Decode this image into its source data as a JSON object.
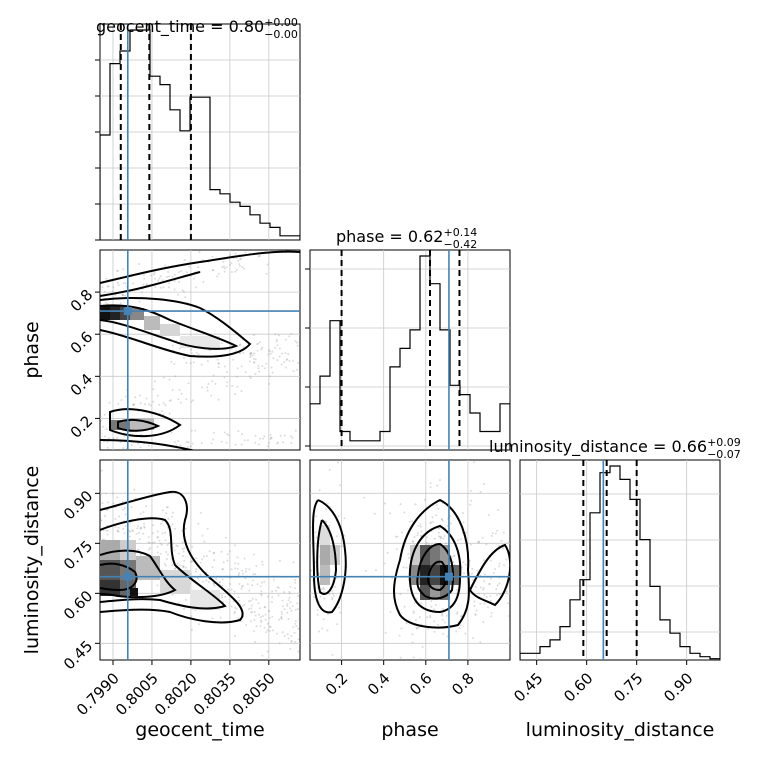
{
  "chart_data": {
    "type": "corner",
    "parameters": [
      "geocent_time",
      "phase",
      "luminosity_distance"
    ],
    "truths": {
      "geocent_time": 0.79957,
      "phase": 0.71,
      "luminosity_distance": 0.65
    },
    "titles": [
      {
        "param": "geocent_time",
        "prefix": "geocent_time = 0.80",
        "sup": "+0.00",
        "sub": "−0.00"
      },
      {
        "param": "phase",
        "prefix": "phase = 0.62",
        "sup": "+0.14",
        "sub": "−0.42"
      },
      {
        "param": "luminosity_distance",
        "prefix": "luminosity_distance = 0.66",
        "sup": "+0.09",
        "sub": "−0.07"
      }
    ],
    "ranges": {
      "geocent_time": [
        0.7985,
        0.8062
      ],
      "phase": [
        0.05,
        1.0
      ],
      "luminosity_distance": [
        0.4,
        1.0
      ]
    },
    "ticks": {
      "geocent_time": [
        0.799,
        0.8005,
        0.802,
        0.8035,
        0.805
      ],
      "phase": [
        0.2,
        0.4,
        0.6,
        0.8
      ],
      "luminosity_distance": [
        0.45,
        0.6,
        0.75,
        0.9
      ]
    },
    "tick_labels": {
      "geocent_time": [
        "0.7990",
        "0.8005",
        "0.8020",
        "0.8035",
        "0.8050"
      ],
      "phase": [
        "0.2",
        "0.4",
        "0.6",
        "0.8"
      ],
      "luminosity_distance": [
        "0.45",
        "0.60",
        "0.75",
        "0.90"
      ]
    },
    "quantiles": {
      "geocent_time": [
        0.7993,
        0.8004,
        0.802
      ],
      "phase": [
        0.2,
        0.62,
        0.76
      ],
      "luminosity_distance": [
        0.59,
        0.66,
        0.75
      ]
    },
    "histograms": {
      "geocent_time": {
        "range": [
          0.7985,
          0.8062
        ],
        "counts": [
          25,
          42,
          45,
          50,
          50,
          39,
          37,
          31,
          26,
          34,
          34,
          12,
          11,
          9,
          8,
          6,
          4,
          3,
          1,
          1
        ]
      },
      "phase": {
        "range": [
          0.05,
          1.0
        ],
        "counts": [
          5,
          8,
          14,
          2,
          1,
          1,
          1,
          2,
          9,
          11,
          13,
          21,
          18,
          13,
          7,
          6,
          4,
          2,
          2,
          5
        ]
      },
      "luminosity_distance": {
        "range": [
          0.4,
          1.0
        ],
        "counts": [
          1,
          1,
          2,
          3,
          5,
          9,
          12,
          22,
          28,
          29,
          27,
          24,
          18,
          11,
          6,
          4,
          2,
          1,
          0.5,
          0.2
        ]
      }
    },
    "grid": true,
    "truth_color": "#4682b4"
  }
}
